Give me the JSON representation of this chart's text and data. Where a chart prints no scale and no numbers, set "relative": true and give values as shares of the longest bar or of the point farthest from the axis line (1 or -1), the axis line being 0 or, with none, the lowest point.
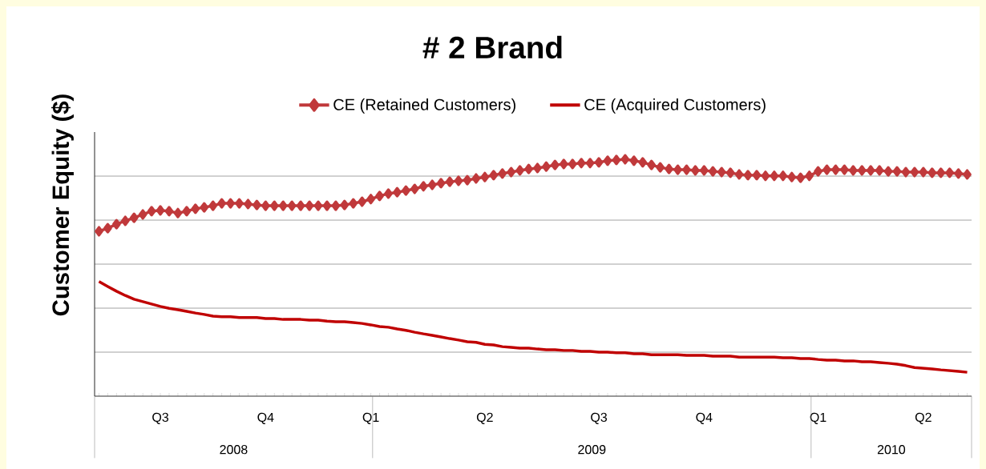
{
  "chart_data": {
    "type": "line",
    "title": "# 2 Brand",
    "ylabel": "Customer Equity ($)",
    "relative": true,
    "grid": "y",
    "legend": "top",
    "categories": [
      null,
      null,
      null,
      null,
      null,
      null,
      null,
      "Q3",
      null,
      null,
      null,
      null,
      null,
      null,
      null,
      null,
      null,
      null,
      null,
      "Q4",
      null,
      null,
      null,
      null,
      null,
      null,
      null,
      null,
      null,
      null,
      null,
      "Q1",
      null,
      null,
      null,
      null,
      null,
      null,
      null,
      null,
      null,
      null,
      null,
      null,
      "Q2",
      null,
      null,
      null,
      null,
      null,
      null,
      null,
      null,
      null,
      null,
      null,
      null,
      "Q3",
      null,
      null,
      null,
      null,
      null,
      null,
      null,
      null,
      null,
      null,
      null,
      "Q4",
      null,
      null,
      null,
      null,
      null,
      null,
      null,
      null,
      null,
      null,
      null,
      null,
      "Q1",
      null,
      null,
      null,
      null,
      null,
      null,
      null,
      null,
      null,
      null,
      null,
      "Q2",
      null,
      null,
      null,
      null,
      null
    ],
    "annotations": [
      "2008",
      "2009",
      "2010"
    ],
    "series": [
      {
        "name": "CE (Retained Customers)",
        "color": "#c0393b",
        "marker": "diamond",
        "values": [
          0.696,
          0.709,
          0.726,
          0.74,
          0.753,
          0.767,
          0.781,
          0.784,
          0.781,
          0.773,
          0.781,
          0.791,
          0.797,
          0.804,
          0.814,
          0.814,
          0.814,
          0.811,
          0.807,
          0.804,
          0.804,
          0.804,
          0.804,
          0.804,
          0.804,
          0.804,
          0.804,
          0.804,
          0.807,
          0.814,
          0.821,
          0.832,
          0.845,
          0.855,
          0.861,
          0.868,
          0.875,
          0.886,
          0.892,
          0.899,
          0.905,
          0.909,
          0.912,
          0.919,
          0.925,
          0.933,
          0.94,
          0.946,
          0.953,
          0.959,
          0.963,
          0.969,
          0.976,
          0.98,
          0.98,
          0.984,
          0.984,
          0.987,
          0.994,
          0.997,
          1,
          0.994,
          0.987,
          0.976,
          0.966,
          0.959,
          0.956,
          0.956,
          0.953,
          0.953,
          0.949,
          0.946,
          0.943,
          0.936,
          0.933,
          0.933,
          0.93,
          0.93,
          0.93,
          0.925,
          0.922,
          0.93,
          0.949,
          0.956,
          0.956,
          0.956,
          0.953,
          0.953,
          0.953,
          0.953,
          0.949,
          0.949,
          0.946,
          0.946,
          0.946,
          0.943,
          0.943,
          0.943,
          0.94,
          0.936
        ]
      },
      {
        "name": "CE (Acquired Customers)",
        "color": "#c00000",
        "marker": "none",
        "values": [
          0.484,
          0.463,
          0.443,
          0.425,
          0.409,
          0.399,
          0.389,
          0.379,
          0.371,
          0.365,
          0.358,
          0.351,
          0.345,
          0.338,
          0.335,
          0.335,
          0.332,
          0.332,
          0.332,
          0.328,
          0.328,
          0.324,
          0.324,
          0.324,
          0.321,
          0.321,
          0.317,
          0.314,
          0.314,
          0.311,
          0.307,
          0.301,
          0.294,
          0.291,
          0.284,
          0.278,
          0.27,
          0.263,
          0.257,
          0.25,
          0.243,
          0.237,
          0.23,
          0.227,
          0.219,
          0.216,
          0.209,
          0.206,
          0.203,
          0.203,
          0.199,
          0.196,
          0.196,
          0.193,
          0.193,
          0.189,
          0.189,
          0.186,
          0.186,
          0.183,
          0.183,
          0.179,
          0.179,
          0.175,
          0.175,
          0.175,
          0.175,
          0.172,
          0.172,
          0.172,
          0.169,
          0.169,
          0.169,
          0.165,
          0.165,
          0.165,
          0.165,
          0.165,
          0.162,
          0.162,
          0.159,
          0.159,
          0.155,
          0.152,
          0.152,
          0.149,
          0.149,
          0.145,
          0.145,
          0.142,
          0.139,
          0.135,
          0.129,
          0.121,
          0.118,
          0.115,
          0.111,
          0.108,
          0.105,
          0.101
        ]
      }
    ]
  }
}
